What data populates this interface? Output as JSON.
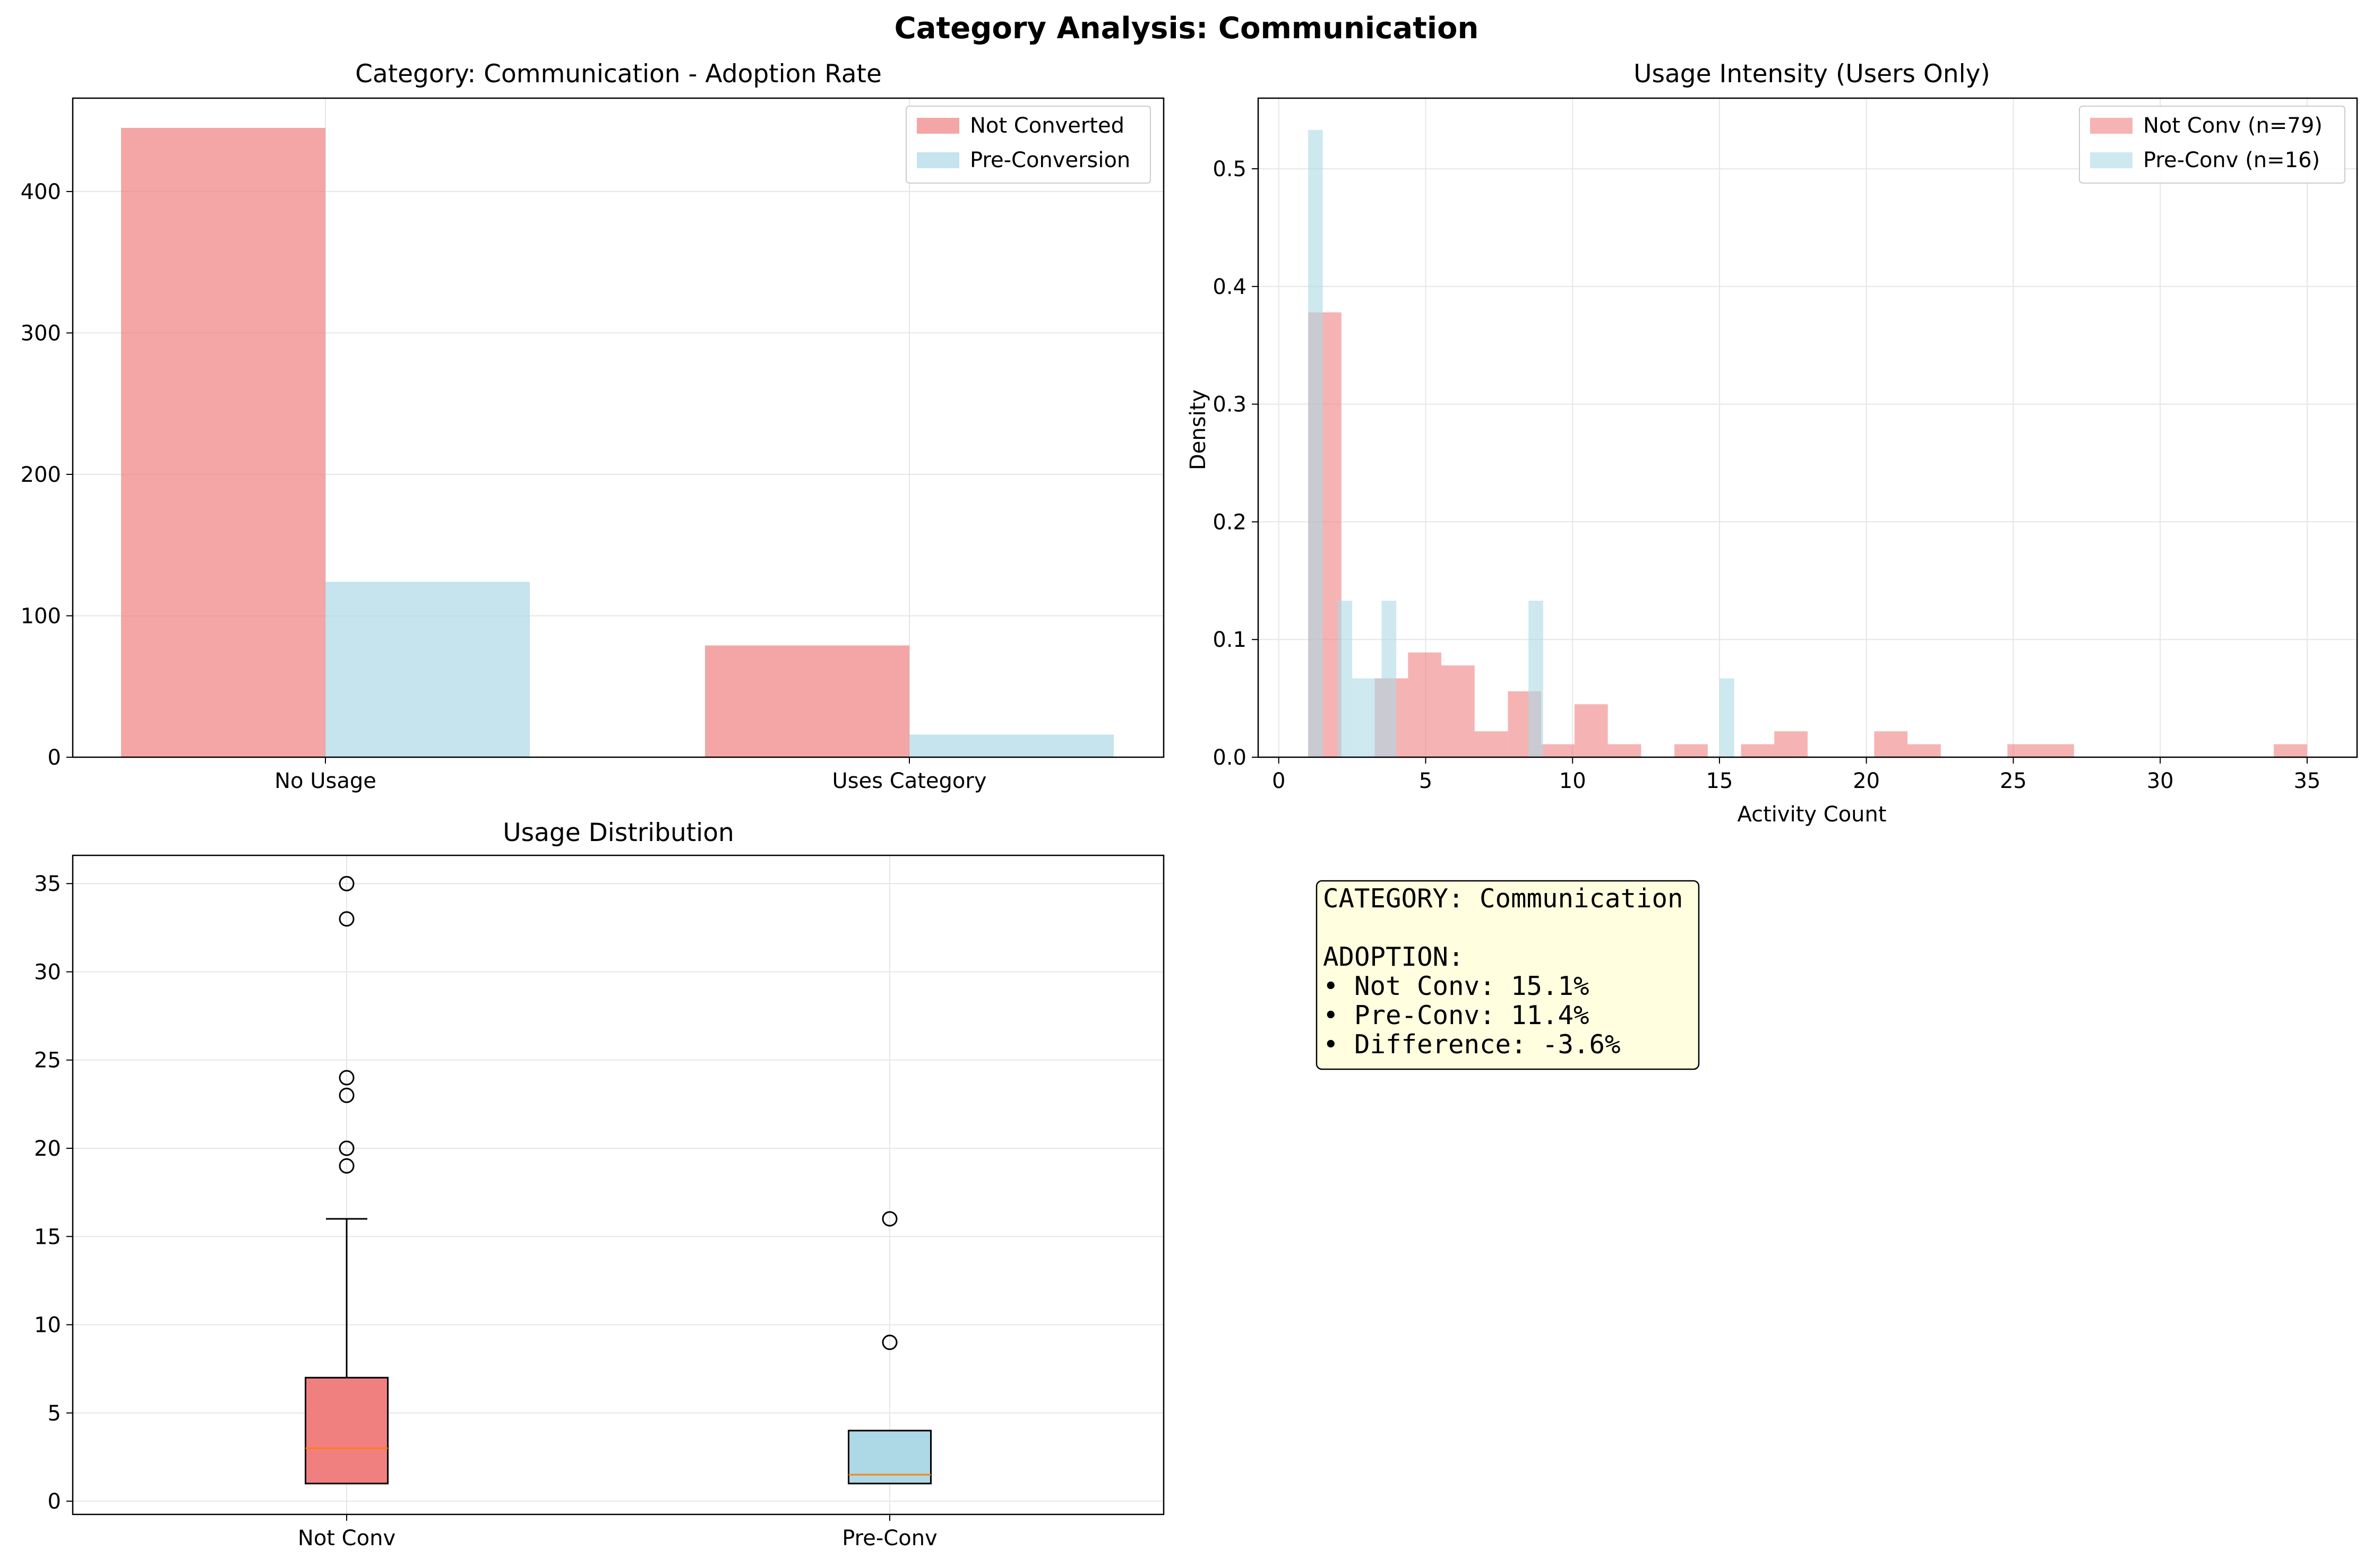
{
  "figure": {
    "title": "Category Analysis: Communication"
  },
  "colors": {
    "not_converted": "#f08080",
    "pre_conversion": "#add8e6",
    "median": "#ff7f0e",
    "grid": "#e6e6e6",
    "textbox_bg": "#ffffe0"
  },
  "chart_data": [
    {
      "id": "adoption",
      "type": "bar",
      "title": "Category: Communication - Adoption Rate",
      "categories": [
        "No Usage",
        "Uses Category"
      ],
      "series": [
        {
          "name": "Not Converted",
          "values": [
            445,
            79
          ]
        },
        {
          "name": "Pre-Conversion",
          "values": [
            124,
            16
          ]
        }
      ],
      "ylim": [
        0,
        466
      ],
      "yticks": [
        0,
        100,
        200,
        300,
        400
      ],
      "grid": true,
      "legend": "top-right"
    },
    {
      "id": "intensity",
      "type": "histogram",
      "title": "Usage Intensity (Users Only)",
      "xlabel": "Activity Count",
      "ylabel": "Density",
      "xlim": [
        -0.7,
        36.7
      ],
      "ylim": [
        0,
        0.56
      ],
      "xticks": [
        0,
        5,
        10,
        15,
        20,
        25,
        30,
        35
      ],
      "yticks": [
        0.0,
        0.1,
        0.2,
        0.3,
        0.4,
        0.5
      ],
      "grid": true,
      "legend": "top-right",
      "series": [
        {
          "name": "Not Conv (n=79)",
          "bin_start": 1,
          "bin_width": 1.1333,
          "densities": [
            0.378,
            0.0,
            0.067,
            0.089,
            0.078,
            0.022,
            0.056,
            0.011,
            0.045,
            0.011,
            0.0,
            0.011,
            0.0,
            0.011,
            0.022,
            0.0,
            0.0,
            0.022,
            0.011,
            0.0,
            0.0,
            0.011,
            0.011,
            0.0,
            0.0,
            0.0,
            0.0,
            0.0,
            0.0,
            0.011
          ]
        },
        {
          "name": "Pre-Conv (n=16)",
          "bin_start": 1,
          "bin_width": 0.5,
          "densities": [
            0.533,
            0.0,
            0.133,
            0.067,
            0.067,
            0.133,
            0.0,
            0.0,
            0.0,
            0.0,
            0.0,
            0.0,
            0.0,
            0.0,
            0.0,
            0.133,
            0.0,
            0.0,
            0.0,
            0.0,
            0.0,
            0.0,
            0.0,
            0.0,
            0.0,
            0.0,
            0.0,
            0.0,
            0.067,
            0.0
          ]
        }
      ]
    },
    {
      "id": "distribution",
      "type": "box",
      "title": "Usage Distribution",
      "categories": [
        "Not Conv",
        "Pre-Conv"
      ],
      "ylim": [
        -0.75,
        36.6
      ],
      "yticks": [
        0,
        5,
        10,
        15,
        20,
        25,
        30,
        35
      ],
      "grid": true,
      "boxes": [
        {
          "name": "Not Conv",
          "q1": 1,
          "median": 3,
          "q3": 7,
          "whisker_low": 1,
          "whisker_high": 16,
          "outliers": [
            19,
            20,
            23,
            24,
            33,
            35
          ]
        },
        {
          "name": "Pre-Conv",
          "q1": 1,
          "median": 1.5,
          "q3": 4,
          "whisker_low": 1,
          "whisker_high": 4,
          "outliers": [
            9,
            16
          ]
        }
      ]
    }
  ],
  "summary": {
    "lines": [
      "CATEGORY: Communication",
      "",
      "ADOPTION:",
      "• Not Conv: 15.1%",
      "• Pre-Conv: 11.4%",
      "• Difference: -3.6%"
    ]
  }
}
